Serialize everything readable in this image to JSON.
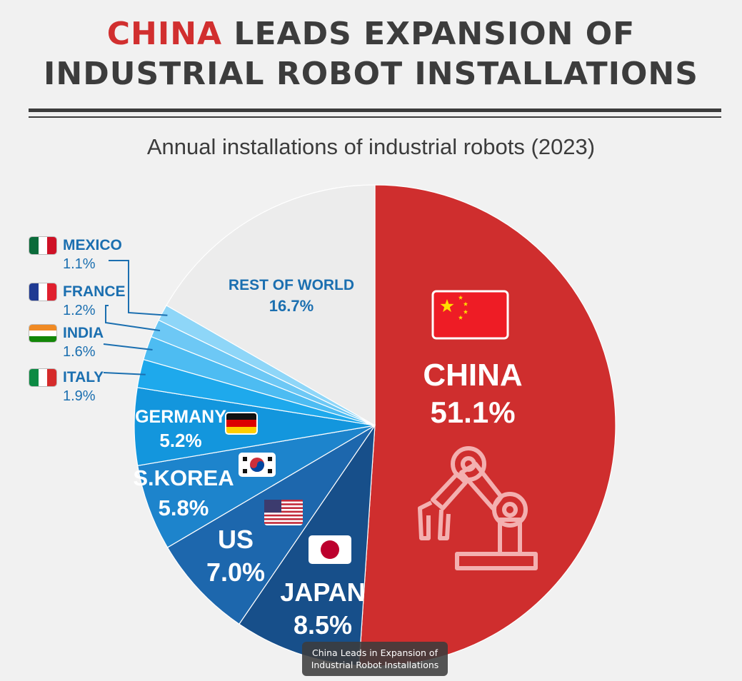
{
  "title": {
    "accent": "CHINA",
    "line1_rest": " LEADS EXPANSION OF",
    "line2": "INDUSTRIAL ROBOT INSTALLATIONS"
  },
  "subtitle": "Annual installations of industrial robots (2023)",
  "colors": {
    "china": "#cf2e2e",
    "title_accent": "#d12f2f",
    "rest_of_world": "#ececec",
    "dark_text": "#3c3c3c",
    "blue_label": "#1b6fb0"
  },
  "chart_data": {
    "type": "pie",
    "unit": "%",
    "title": "Annual installations of industrial robots (2023)",
    "slices": [
      {
        "label": "CHINA",
        "value": 51.1,
        "value_label": "51.1%",
        "color": "#cf2e2e"
      },
      {
        "label": "JAPAN",
        "value": 8.5,
        "value_label": "8.5%",
        "color": "#174f8a"
      },
      {
        "label": "US",
        "value": 7.0,
        "value_label": "7.0%",
        "color": "#1d67ad"
      },
      {
        "label": "S.KOREA",
        "value": 5.8,
        "value_label": "5.8%",
        "color": "#1d84cc"
      },
      {
        "label": "GERMANY",
        "value": 5.2,
        "value_label": "5.2%",
        "color": "#1396dd"
      },
      {
        "label": "ITALY",
        "value": 1.9,
        "value_label": "1.9%",
        "color": "#1ea9ec"
      },
      {
        "label": "INDIA",
        "value": 1.6,
        "value_label": "1.6%",
        "color": "#4dbcf2"
      },
      {
        "label": "FRANCE",
        "value": 1.2,
        "value_label": "1.2%",
        "color": "#6dc8f5"
      },
      {
        "label": "MEXICO",
        "value": 1.1,
        "value_label": "1.1%",
        "color": "#8ed6f8"
      },
      {
        "label": "REST OF WORLD",
        "value": 16.7,
        "value_label": "16.7%",
        "color": "#ececec"
      }
    ]
  },
  "legend": [
    {
      "name": "MEXICO",
      "value": "1.1%",
      "flag": "mexico-flag"
    },
    {
      "name": "FRANCE",
      "value": "1.2%",
      "flag": "france-flag"
    },
    {
      "name": "INDIA",
      "value": "1.6%",
      "flag": "india-flag"
    },
    {
      "name": "ITALY",
      "value": "1.9%",
      "flag": "italy-flag"
    }
  ],
  "icons": {
    "robot_arm": "robot-arm-icon"
  },
  "tooltip": {
    "line1": "China Leads in Expansion of",
    "line2": "Industrial Robot Installations"
  }
}
